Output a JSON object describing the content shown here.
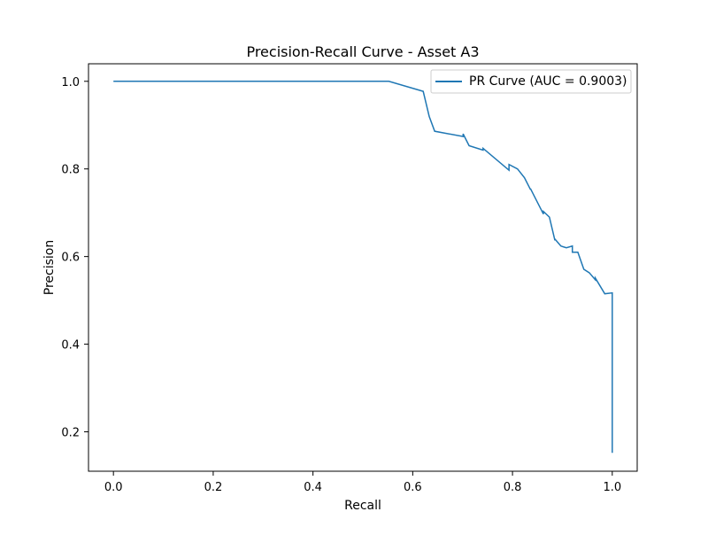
{
  "chart_data": {
    "type": "line",
    "title": "Precision-Recall Curve - Asset A3",
    "xlabel": "Recall",
    "ylabel": "Precision",
    "xlim": [
      -0.05,
      1.05
    ],
    "ylim": [
      0.11,
      1.04
    ],
    "x_ticks": [
      0.0,
      0.2,
      0.4,
      0.6,
      0.8,
      1.0
    ],
    "y_ticks": [
      0.2,
      0.4,
      0.6,
      0.8,
      1.0
    ],
    "x_tick_labels": [
      "0.0",
      "0.2",
      "0.4",
      "0.6",
      "0.8",
      "1.0"
    ],
    "y_tick_labels": [
      "0.2",
      "0.4",
      "0.6",
      "0.8",
      "1.0"
    ],
    "grid": false,
    "legend_position": "top-right",
    "series": [
      {
        "name": "PR Curve (AUC = 0.9003)",
        "color": "#1f77b4",
        "drawstyle": "steps-post",
        "x": [
          0.0,
          0.552,
          0.621,
          0.621,
          0.633,
          0.633,
          0.644,
          0.644,
          0.701,
          0.701,
          0.713,
          0.713,
          0.741,
          0.741,
          0.793,
          0.793,
          0.81,
          0.81,
          0.824,
          0.824,
          0.836,
          0.836,
          0.862,
          0.862,
          0.874,
          0.874,
          0.885,
          0.885,
          0.897,
          0.897,
          0.908,
          0.908,
          0.92,
          0.92,
          0.931,
          0.931,
          0.943,
          0.943,
          0.954,
          0.954,
          0.966,
          0.966,
          0.985,
          0.985,
          1.0,
          1.0
        ],
        "y": [
          1.0,
          1.0,
          0.977,
          0.977,
          0.92,
          0.92,
          0.886,
          0.886,
          0.874,
          0.88,
          0.853,
          0.853,
          0.843,
          0.847,
          0.797,
          0.81,
          0.8,
          0.8,
          0.78,
          0.78,
          0.753,
          0.755,
          0.697,
          0.703,
          0.69,
          0.69,
          0.637,
          0.64,
          0.624,
          0.624,
          0.62,
          0.62,
          0.624,
          0.61,
          0.61,
          0.61,
          0.571,
          0.571,
          0.563,
          0.563,
          0.547,
          0.551,
          0.515,
          0.515,
          0.517,
          0.152
        ]
      }
    ]
  }
}
